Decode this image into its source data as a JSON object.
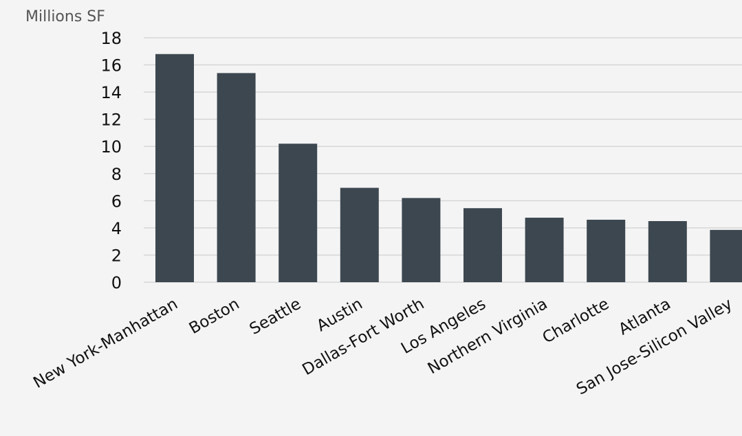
{
  "chart_data": {
    "type": "bar",
    "title": "",
    "xlabel": "",
    "ylabel": "Millions SF",
    "categories": [
      "New York-Manhattan",
      "Boston",
      "Seattle",
      "Austin",
      "Dallas-Fort Worth",
      "Los Angeles",
      "Northern Virginia",
      "Charlotte",
      "Atlanta",
      "San Jose-Silicon Valley"
    ],
    "values": [
      16.8,
      15.4,
      10.2,
      6.95,
      6.2,
      5.45,
      4.75,
      4.6,
      4.5,
      3.85
    ],
    "ylim": [
      0,
      18
    ],
    "yticks": [
      "0",
      "2",
      "4",
      "6",
      "8",
      "10",
      "12",
      "14",
      "16",
      "18"
    ],
    "grid": true,
    "legend": "none",
    "colors": {
      "bar": "#3d4750",
      "grid": "#d6d6d6",
      "background": "#f4f4f4"
    }
  }
}
